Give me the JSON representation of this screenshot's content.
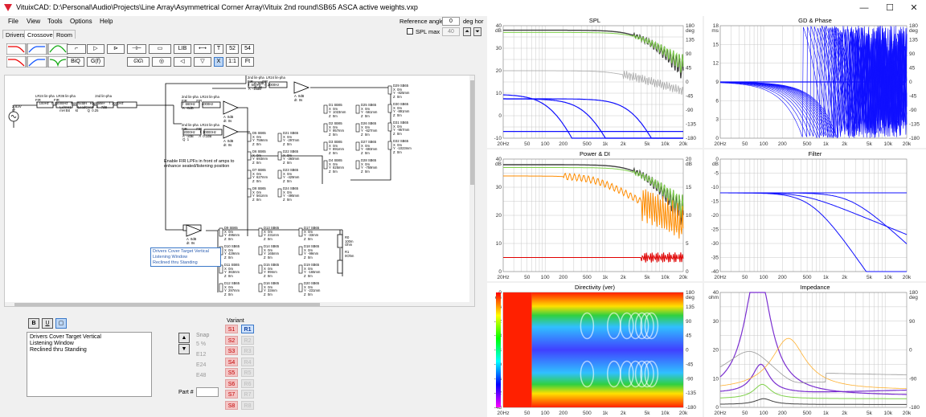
{
  "window": {
    "title": "VituixCAD: D:\\Personal\\Audio\\Projects\\Line Array\\Asymmetrical Corner Array\\Vituix 2nd round\\SB65 ASCA active weights.vxp",
    "minimize": "—",
    "maximize": "☐",
    "close": "✕"
  },
  "menu": [
    "File",
    "View",
    "Tools",
    "Options",
    "Help"
  ],
  "tabs": [
    "Drivers",
    "Crossover",
    "Room"
  ],
  "reference": {
    "label": "Reference angle",
    "value": "0",
    "unit": "deg hor",
    "spl_max_label": "SPL max",
    "spl_max_value": "40"
  },
  "toolbar": {
    "lib": "LIB",
    "t": "T",
    "n52": "52",
    "n54": "54",
    "biq": "BiQ",
    "gf": "G(f)",
    "x": "X",
    "ratio": "1:1",
    "ft": "Ft"
  },
  "schematic": {
    "note": "Enable FIR LPFs in front of amps to\nenhance seated/listening position",
    "popup": [
      "Drivers Cover Target Vertical",
      "Listening Window",
      "Reclined thru Standing"
    ],
    "src_label": "2.83V\n0°",
    "blocks": {
      "lr_chain": "LR24 lin-pha  LR36 lin-pha                     2nd lin-pha\nFIR              FIR\n f  100Hz   f  22000Hz   NotchStdR   RaphaseF    f  2000Hz\n                          Lx/mH1      fLeadCon1   A  -7dB\n                          mH Bit      kt          Q  0.25",
      "top_fir": "2nd lin-pha  LR24 lin-pha\nFIR          FIR\n f  500Hz    f  2000Hz\n A  -15dB",
      "mid_fir": "2nd lin-pha  LR24 lin-pha\nFIR          FIR\n f  660Hz    f  4000Hz\n A  -8dB",
      "low_fir": "2nd lin-pha  LR24 lin-pha\nFIR          FIR\n  2000Hz     f  10000Hz\n A  -2dB      A  0.1dB\n Q  1",
      "amp1": "A  0dB\ndt  0s",
      "amp2": "A  0dB\ndt  0s",
      "amp3": "A  0dB\ndt  0s",
      "amp4": "A  0dB\ndt  0s",
      "amp5": "A  0dB\ndt  0s",
      "col1": "D21 SB65\nX  0m\nY  -297mm\nZ  0m\n\nD22 SB65\nX  0m\nY  -360mm\nZ  0m\n\nD23 SB65\nX  0m\nY  -429mm\nZ  0m\n\nD24 SB65\nX  0m\nY  -495mm\nZ  0m",
      "col0": "D5 SB65\nX  0m\nY  759mm\nZ  0m\n\nD6 SB65\nX  0m\nY  693mm\nZ  0m\n\nD7 SB65\nX  0m\nY  627mm\nZ  0m\n\nD8 SB65\nX  0m\nY  561mm\nZ  0m",
      "col2": "D1 SB65\nX  0m\nY  1023mm\nZ  0m\n\nD2 SB65\nX  0m\nY  957mm\nZ  0m\n\nD3 SB65\nX  0m\nY  891mm\nZ  0m\n\nD4 SB65\nX  0m\nY  825mm\nZ  0m",
      "col3": "D25 SB65\nX  0m\nY  -561mm\nZ  0m\n\nD26 SB65\nX  0m\nY  -627mm\nZ  0m\n\nD27 SB65\nX  0m\nY  -693mm\nZ  0m\n\nD28 SB65\nX  0m\nY  -759mm\nZ  0m",
      "col4": "D29 SB65\nX  0m\nY  -825mm\nZ  0m\n\nD30 SB65\nX  0m\nY  -891mm\nZ  0m\n\nD31 SB65\nX  0m\nY  -957mm\nZ  0m\n\nD32 SB65\nX  0m\nY  -1023mm\nZ  0m",
      "b1": "D9 SB65\nX  0m\nY  495mm\nZ  0m\n\nD10 SB65\nX  0m\nY  429mm\nZ  0m\n\nD11 SB65\nX  0m\nY  363mm\nZ  0m\n\nD12 SB65\nX  0m\nY  297mm\nZ  0m",
      "b2": "D13 SB65\nX  0m\nY  231mm\nZ  0m\n\nD14 SB65\nX  0m\nY  165mm\nZ  0m\n\nD15 SB65\nX  0m\nY  99mm\nZ  0m\n\nD16 SB65\nX  0m\nY  33mm\nZ  0m",
      "b3": "D17 SB65\nX  0m\nY  -33mm\nZ  0m\n\nD18 SB65\nX  0m\nY  -99mm\nZ  0m\n\nD19 SB65\nX  0m\nY  -165mm\nZ  0m\n\nD20 SB65\nX  0m\nY  -231mm\nZ  0m",
      "res": "R0\n100m\nOhm\n\nR1\n0Ohm"
    }
  },
  "notes": {
    "text": [
      "Drivers Cover Target Vertical",
      "Listening Window",
      "Reclined thru Standing"
    ],
    "bold": "B",
    "underline": "U"
  },
  "snap": {
    "label": "Snap",
    "options": [
      "5 %",
      "E12",
      "E24",
      "E48"
    ],
    "part_label": "Part #"
  },
  "variant": {
    "label": "Variant",
    "s": [
      "S1",
      "S2",
      "S3",
      "S4",
      "S5",
      "S6",
      "S7",
      "S8"
    ],
    "r": [
      "R1",
      "R2",
      "R3",
      "R4",
      "R5",
      "R6",
      "R7",
      "R8"
    ]
  },
  "charts": {
    "spl": {
      "title": "SPL",
      "unit_l": "dB",
      "unit_r": "deg",
      "yl": [
        "40",
        "30",
        "20",
        "10",
        "0",
        "-10"
      ],
      "yr": [
        "180",
        "135",
        "90",
        "45",
        "0",
        "-45",
        "-90",
        "-135",
        "-180"
      ]
    },
    "gd": {
      "title": "GD & Phase",
      "unit_l": "ms",
      "unit_r": "deg",
      "yl": [
        "18",
        "15",
        "12",
        "9",
        "6",
        "3",
        "0"
      ],
      "yr": [
        "180",
        "135",
        "90",
        "45",
        "0",
        "-45",
        "-90",
        "-135",
        "-180"
      ]
    },
    "power": {
      "title": "Power & DI",
      "unit_l": "dB",
      "unit_r": "dB",
      "yl": [
        "40",
        "30",
        "20",
        "10",
        "0"
      ],
      "yr": [
        "20",
        "15",
        "10",
        "5",
        "0"
      ]
    },
    "filter": {
      "title": "Filter",
      "unit_l": "dB",
      "yl": [
        "0",
        "-5",
        "-10",
        "-15",
        "-20",
        "-25",
        "-30",
        "-35",
        "-40"
      ]
    },
    "dir": {
      "title": "Directivity (ver)",
      "unit_l": "dB",
      "unit_r": "deg",
      "yl": [
        "0",
        "-6",
        "-12",
        "-18",
        "-24",
        "-30",
        "-36",
        "-42",
        "-48"
      ],
      "yr": [
        "180",
        "135",
        "90",
        "45",
        "0",
        "-45",
        "-90",
        "-135",
        "-180"
      ]
    },
    "imp": {
      "title": "Impedance",
      "unit_l": "ohm",
      "unit_r": "deg",
      "yl": [
        "40",
        "30",
        "20",
        "10",
        "0"
      ],
      "yr": [
        "180",
        "90",
        "0",
        "-90",
        "-180"
      ]
    },
    "xticks": [
      "20Hz",
      "50",
      "100",
      "200",
      "500",
      "1k",
      "2k",
      "5k",
      "10k",
      "20k"
    ]
  },
  "colors": {
    "grid": "#c8c8c8",
    "blue": "#1010ff",
    "orange": "#ff8c00",
    "green": "#7fd04a",
    "red": "#e00000",
    "dark": "#404040",
    "purple": "#7a2fd0"
  }
}
